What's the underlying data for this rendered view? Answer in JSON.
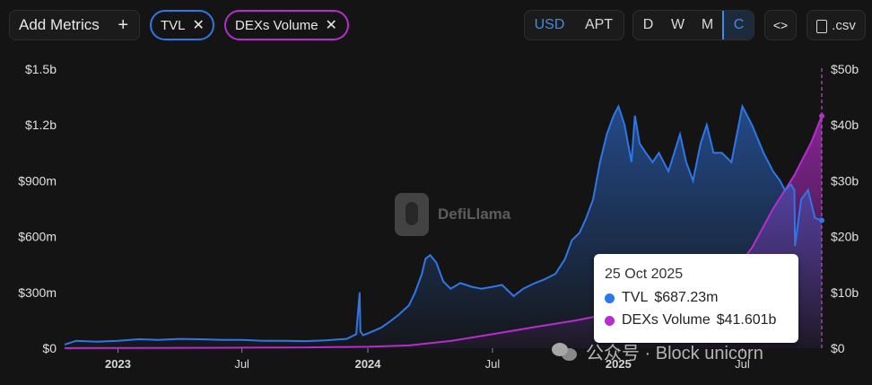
{
  "toolbar": {
    "add_metrics_label": "Add Metrics",
    "add_icon": "+",
    "chips": [
      {
        "label": "TVL",
        "close": "✕",
        "color": "#2f76e6"
      },
      {
        "label": "DEXs Volume",
        "close": "✕",
        "color": "#b62ccc"
      }
    ],
    "currency": {
      "options": [
        "USD",
        "APT"
      ],
      "selected": "USD"
    },
    "period": {
      "options": [
        "D",
        "W",
        "M",
        "C"
      ],
      "selected": "C"
    },
    "embed_label": "<>",
    "csv_label": ".csv"
  },
  "watermark": "DefiLlama",
  "tooltip": {
    "date": "25 Oct 2025",
    "rows": [
      {
        "name": "TVL",
        "value": "$687.23m",
        "color": "#2f76e6"
      },
      {
        "name": "DEXs Volume",
        "value": "$41.601b",
        "color": "#b62ccc"
      }
    ]
  },
  "credit": "公众号 · Block unicorn",
  "chart_data": {
    "type": "area",
    "x_tick_labels": [
      "2023",
      "Jul",
      "2024",
      "Jul",
      "2025",
      "Jul"
    ],
    "left_axis": {
      "tick_labels": [
        "$0",
        "$300m",
        "$600m",
        "$900m",
        "$1.2b",
        "$1.5b"
      ],
      "range": [
        0,
        1500
      ],
      "unit": "millions USD"
    },
    "right_axis": {
      "tick_labels": [
        "$0",
        "$10b",
        "$20b",
        "$30b",
        "$40b",
        "$50b"
      ],
      "range": [
        0,
        50
      ],
      "unit": "billions USD"
    },
    "grid": false,
    "series": [
      {
        "name": "TVL",
        "axis": "left",
        "color": "#2f76e6",
        "x": [
          "2022-10-15",
          "2022-11-01",
          "2022-12-01",
          "2023-01-01",
          "2023-02-01",
          "2023-03-01",
          "2023-04-01",
          "2023-05-01",
          "2023-06-01",
          "2023-07-01",
          "2023-08-01",
          "2023-09-01",
          "2023-10-01",
          "2023-11-01",
          "2023-12-01",
          "2023-12-15",
          "2023-12-20",
          "2023-12-21",
          "2023-12-25",
          "2024-01-01",
          "2024-01-20",
          "2024-02-01",
          "2024-02-15",
          "2024-03-01",
          "2024-03-10",
          "2024-03-20",
          "2024-03-25",
          "2024-04-01",
          "2024-04-10",
          "2024-04-20",
          "2024-05-01",
          "2024-05-15",
          "2024-06-01",
          "2024-06-15",
          "2024-07-01",
          "2024-07-15",
          "2024-08-01",
          "2024-08-15",
          "2024-09-01",
          "2024-09-15",
          "2024-10-01",
          "2024-10-15",
          "2024-10-25",
          "2024-11-05",
          "2024-11-15",
          "2024-11-25",
          "2024-12-05",
          "2024-12-15",
          "2024-12-25",
          "2025-01-01",
          "2025-01-10",
          "2025-01-20",
          "2025-01-25",
          "2025-02-01",
          "2025-02-10",
          "2025-02-20",
          "2025-03-01",
          "2025-03-15",
          "2025-04-01",
          "2025-04-10",
          "2025-04-20",
          "2025-05-01",
          "2025-05-10",
          "2025-05-20",
          "2025-06-01",
          "2025-06-15",
          "2025-07-01",
          "2025-07-15",
          "2025-08-01",
          "2025-08-15",
          "2025-08-25",
          "2025-09-01",
          "2025-09-10",
          "2025-09-15",
          "2025-09-16",
          "2025-09-25",
          "2025-10-05",
          "2025-10-15",
          "2025-10-25"
        ],
        "values": [
          20,
          40,
          35,
          40,
          48,
          45,
          50,
          48,
          45,
          45,
          40,
          40,
          38,
          42,
          50,
          75,
          300,
          90,
          70,
          80,
          110,
          140,
          180,
          230,
          300,
          400,
          480,
          500,
          460,
          360,
          320,
          350,
          330,
          320,
          330,
          340,
          280,
          320,
          350,
          370,
          400,
          480,
          580,
          620,
          700,
          800,
          1000,
          1150,
          1250,
          1300,
          1200,
          1000,
          1250,
          1100,
          1050,
          1000,
          1050,
          950,
          1150,
          1000,
          900,
          1100,
          1200,
          1050,
          1050,
          1000,
          1300,
          1200,
          1050,
          950,
          900,
          850,
          880,
          850,
          550,
          800,
          850,
          700,
          687
        ]
      },
      {
        "name": "DEXs Volume",
        "axis": "right",
        "color": "#b62ccc",
        "x": [
          "2022-10-15",
          "2023-04-01",
          "2023-07-01",
          "2023-10-01",
          "2024-01-01",
          "2024-03-01",
          "2024-05-01",
          "2024-07-01",
          "2024-09-01",
          "2024-11-01",
          "2025-01-01",
          "2025-03-01",
          "2025-05-01",
          "2025-06-15",
          "2025-07-15",
          "2025-08-15",
          "2025-09-15",
          "2025-10-10",
          "2025-10-25"
        ],
        "values": [
          0.02,
          0.06,
          0.1,
          0.15,
          0.25,
          0.5,
          1.3,
          2.5,
          3.8,
          5.0,
          6.5,
          8.5,
          11.0,
          13.0,
          18.0,
          25.0,
          31.0,
          37.0,
          41.601
        ]
      }
    ]
  }
}
